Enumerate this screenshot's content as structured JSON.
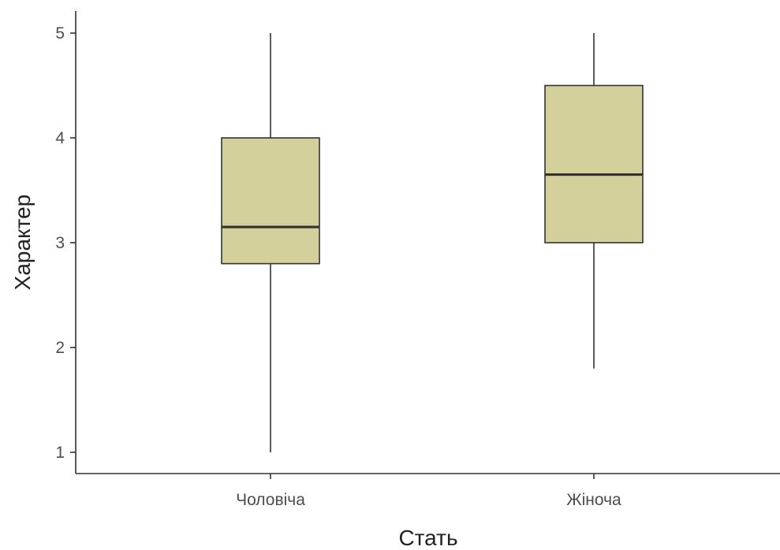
{
  "chart_data": {
    "type": "boxplot",
    "xlabel": "Стать",
    "ylabel": "Характер",
    "categories": [
      "Чоловіча",
      "Жіноча"
    ],
    "ylim": [
      0.8,
      5.2
    ],
    "yticks": [
      1,
      2,
      3,
      4,
      5
    ],
    "series": [
      {
        "category": "Чоловіча",
        "min": 1.0,
        "q1": 2.8,
        "median": 3.15,
        "q3": 4.0,
        "max": 5.0
      },
      {
        "category": "Жіноча",
        "min": 1.8,
        "q1": 3.0,
        "median": 3.65,
        "q3": 4.5,
        "max": 5.0
      }
    ],
    "box_fill": "#d4d09c",
    "line_color": "#333333",
    "grid": false,
    "legend": "none"
  }
}
